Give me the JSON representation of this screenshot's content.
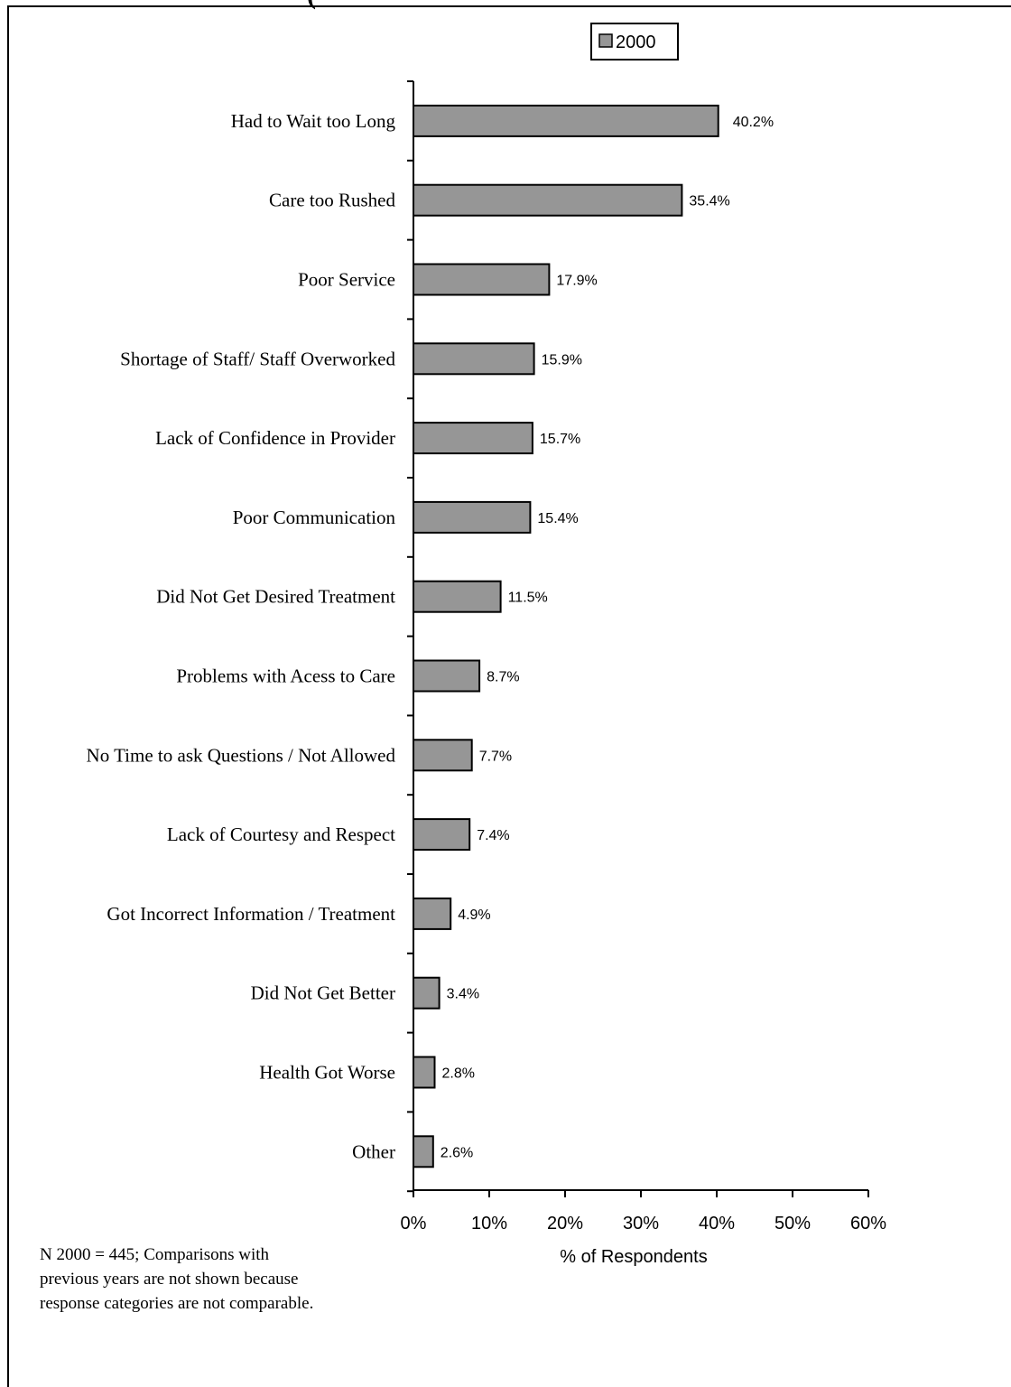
{
  "header_fragment": "(",
  "note": "N 2000 = 445; Comparisons with previous years are not shown because response categories are not comparable.",
  "colors": {
    "bar_fill": "#969696",
    "stroke": "#000000"
  },
  "chart_data": {
    "type": "bar",
    "orientation": "horizontal",
    "categories": [
      "Had to Wait too Long",
      "Care too Rushed",
      "Poor Service",
      "Shortage of Staff/ Staff Overworked",
      "Lack of Confidence in Provider",
      "Poor Communication",
      "Did Not Get Desired Treatment",
      "Problems with Acess to Care",
      "No Time to ask Questions / Not Allowed",
      "Lack of Courtesy and Respect",
      "Got Incorrect Information / Treatment",
      "Did Not Get Better",
      "Health Got Worse",
      "Other"
    ],
    "series": [
      {
        "name": "2000",
        "values": [
          40.2,
          35.4,
          17.9,
          15.9,
          15.7,
          15.4,
          11.5,
          8.7,
          7.7,
          7.4,
          4.9,
          3.4,
          2.8,
          2.6
        ]
      }
    ],
    "data_labels": [
      "40.2%",
      "35.4%",
      "17.9%",
      "15.9%",
      "15.7%",
      "15.4%",
      "11.5%",
      "8.7%",
      "7.7%",
      "7.4%",
      "4.9%",
      "3.4%",
      "2.8%",
      "2.6%"
    ],
    "xlim": [
      0,
      60
    ],
    "xticks": [
      "0%",
      "10%",
      "20%",
      "30%",
      "40%",
      "50%",
      "60%"
    ],
    "xlabel": "% of Respondents",
    "ylabel": "",
    "legend": "top-right",
    "grid": false
  }
}
